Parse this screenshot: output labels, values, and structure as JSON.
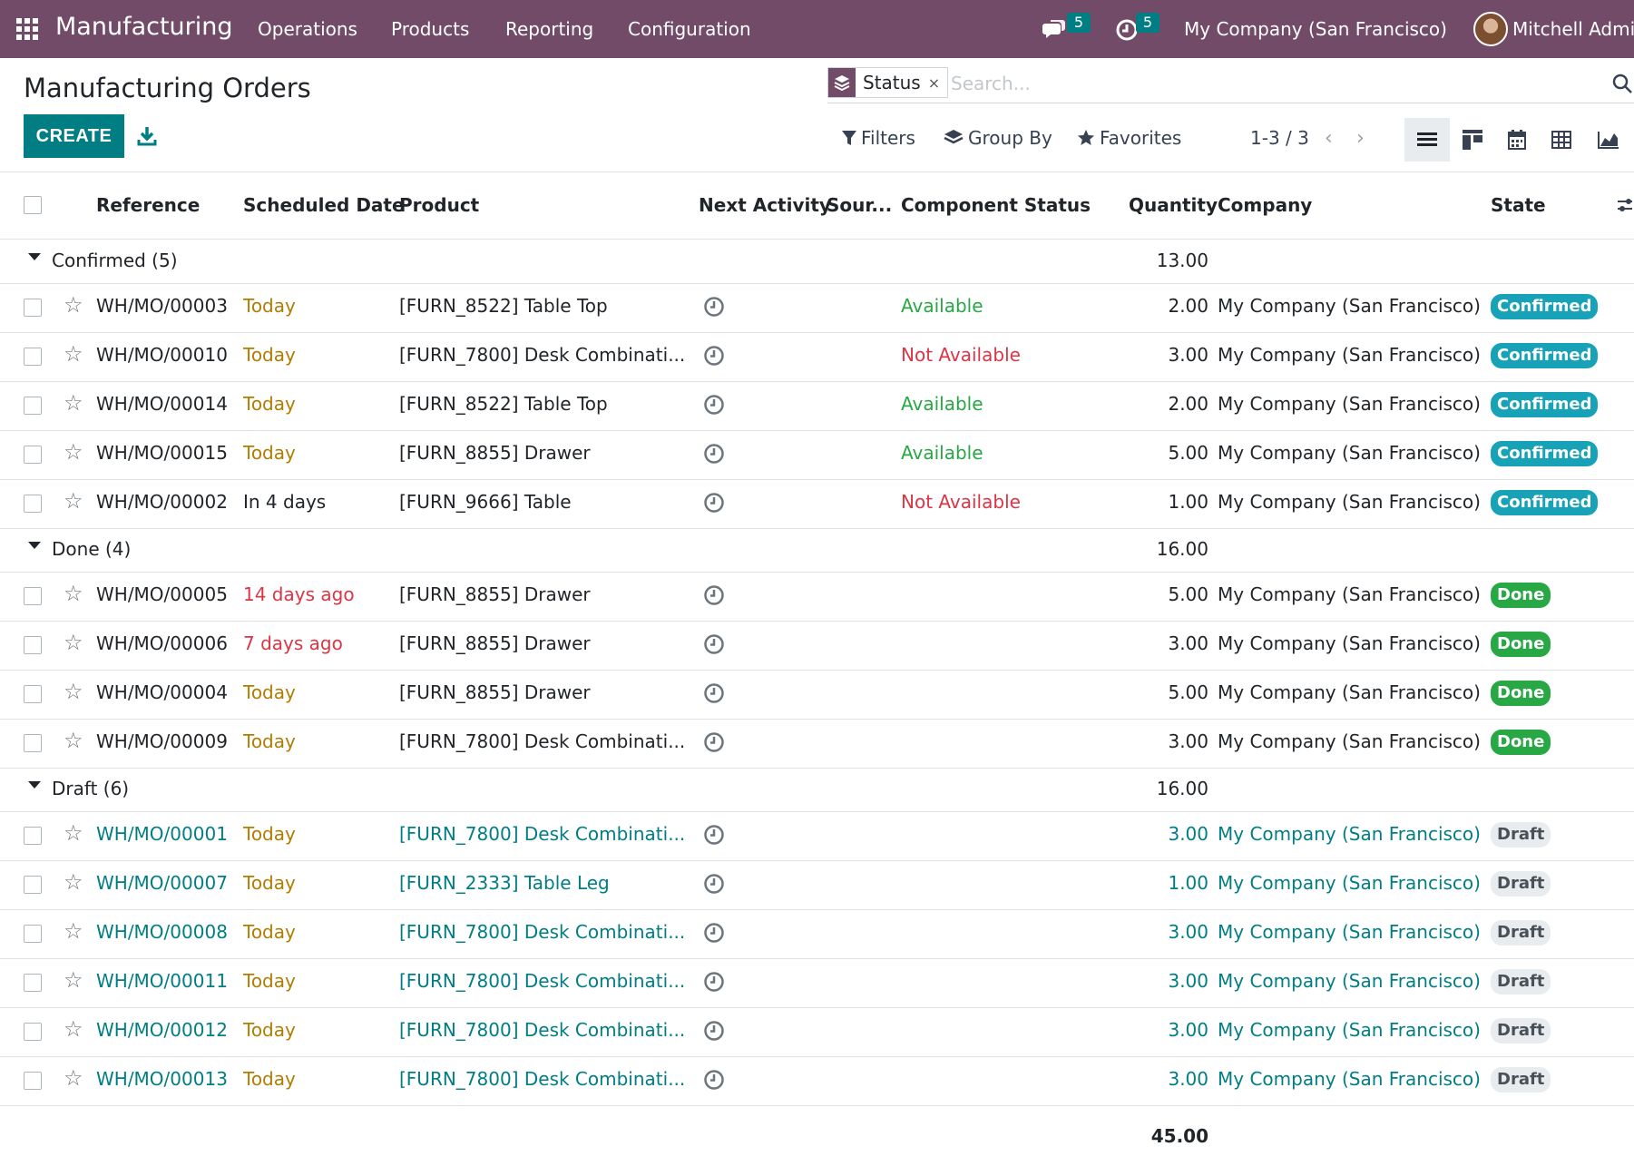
{
  "navbar": {
    "app_name": "Manufacturing",
    "menu": [
      "Operations",
      "Products",
      "Reporting",
      "Configuration"
    ],
    "messages_count": "5",
    "activities_count": "5",
    "company": "My Company (San Francisco)",
    "user": "Mitchell Admin",
    "bg_color": "#714B67"
  },
  "control_panel": {
    "title": "Manufacturing Orders",
    "create_label": "CREATE",
    "facet_label": "Status",
    "facet_remove": "×",
    "search_placeholder": "Search...",
    "filters_label": "Filters",
    "groupby_label": "Group By",
    "favorites_label": "Favorites",
    "pager": "1-3 / 3",
    "pager_prev": "‹",
    "pager_next": "›"
  },
  "columns": {
    "reference": "Reference",
    "scheduled_date": "Scheduled Date",
    "product": "Product",
    "next_activity": "Next Activity",
    "source": "Sour...",
    "component_status": "Component Status",
    "quantity": "Quantity",
    "company": "Company",
    "state": "State"
  },
  "groups": [
    {
      "label": "Confirmed (5)",
      "total": "13.00",
      "rows": [
        {
          "ref": "WH/MO/00003",
          "date": "Today",
          "date_kind": "today",
          "product": "[FURN_8522] Table Top",
          "component": "Available",
          "component_kind": "ok",
          "qty": "2.00",
          "company": "My Company (San Francisco)",
          "state": "Confirmed",
          "state_kind": "confirmed"
        },
        {
          "ref": "WH/MO/00010",
          "date": "Today",
          "date_kind": "today",
          "product": "[FURN_7800] Desk Combinati...",
          "component": "Not Available",
          "component_kind": "ko",
          "qty": "3.00",
          "company": "My Company (San Francisco)",
          "state": "Confirmed",
          "state_kind": "confirmed"
        },
        {
          "ref": "WH/MO/00014",
          "date": "Today",
          "date_kind": "today",
          "product": "[FURN_8522] Table Top",
          "component": "Available",
          "component_kind": "ok",
          "qty": "2.00",
          "company": "My Company (San Francisco)",
          "state": "Confirmed",
          "state_kind": "confirmed"
        },
        {
          "ref": "WH/MO/00015",
          "date": "Today",
          "date_kind": "today",
          "product": "[FURN_8855] Drawer",
          "component": "Available",
          "component_kind": "ok",
          "qty": "5.00",
          "company": "My Company (San Francisco)",
          "state": "Confirmed",
          "state_kind": "confirmed"
        },
        {
          "ref": "WH/MO/00002",
          "date": "In 4 days",
          "date_kind": "future",
          "product": "[FURN_9666] Table",
          "component": "Not Available",
          "component_kind": "ko",
          "qty": "1.00",
          "company": "My Company (San Francisco)",
          "state": "Confirmed",
          "state_kind": "confirmed"
        }
      ]
    },
    {
      "label": "Done (4)",
      "total": "16.00",
      "rows": [
        {
          "ref": "WH/MO/00005",
          "date": "14 days ago",
          "date_kind": "late",
          "product": "[FURN_8855] Drawer",
          "component": "",
          "component_kind": "",
          "qty": "5.00",
          "company": "My Company (San Francisco)",
          "state": "Done",
          "state_kind": "done"
        },
        {
          "ref": "WH/MO/00006",
          "date": "7 days ago",
          "date_kind": "late",
          "product": "[FURN_8855] Drawer",
          "component": "",
          "component_kind": "",
          "qty": "3.00",
          "company": "My Company (San Francisco)",
          "state": "Done",
          "state_kind": "done"
        },
        {
          "ref": "WH/MO/00004",
          "date": "Today",
          "date_kind": "today",
          "product": "[FURN_8855] Drawer",
          "component": "",
          "component_kind": "",
          "qty": "5.00",
          "company": "My Company (San Francisco)",
          "state": "Done",
          "state_kind": "done"
        },
        {
          "ref": "WH/MO/00009",
          "date": "Today",
          "date_kind": "today",
          "product": "[FURN_7800] Desk Combinati...",
          "component": "",
          "component_kind": "",
          "qty": "3.00",
          "company": "My Company (San Francisco)",
          "state": "Done",
          "state_kind": "done"
        }
      ]
    },
    {
      "label": "Draft (6)",
      "total": "16.00",
      "rows": [
        {
          "ref": "WH/MO/00001",
          "date": "Today",
          "date_kind": "today",
          "product": "[FURN_7800] Desk Combinati...",
          "component": "",
          "component_kind": "",
          "qty": "3.00",
          "company": "My Company (San Francisco)",
          "state": "Draft",
          "state_kind": "draft"
        },
        {
          "ref": "WH/MO/00007",
          "date": "Today",
          "date_kind": "today",
          "product": "[FURN_2333] Table Leg",
          "component": "",
          "component_kind": "",
          "qty": "1.00",
          "company": "My Company (San Francisco)",
          "state": "Draft",
          "state_kind": "draft"
        },
        {
          "ref": "WH/MO/00008",
          "date": "Today",
          "date_kind": "today",
          "product": "[FURN_7800] Desk Combinati...",
          "component": "",
          "component_kind": "",
          "qty": "3.00",
          "company": "My Company (San Francisco)",
          "state": "Draft",
          "state_kind": "draft"
        },
        {
          "ref": "WH/MO/00011",
          "date": "Today",
          "date_kind": "today",
          "product": "[FURN_7800] Desk Combinati...",
          "component": "",
          "component_kind": "",
          "qty": "3.00",
          "company": "My Company (San Francisco)",
          "state": "Draft",
          "state_kind": "draft"
        },
        {
          "ref": "WH/MO/00012",
          "date": "Today",
          "date_kind": "today",
          "product": "[FURN_7800] Desk Combinati...",
          "component": "",
          "component_kind": "",
          "qty": "3.00",
          "company": "My Company (San Francisco)",
          "state": "Draft",
          "state_kind": "draft"
        },
        {
          "ref": "WH/MO/00013",
          "date": "Today",
          "date_kind": "today",
          "product": "[FURN_7800] Desk Combinati...",
          "component": "",
          "component_kind": "",
          "qty": "3.00",
          "company": "My Company (San Francisco)",
          "state": "Draft",
          "state_kind": "draft"
        }
      ]
    }
  ],
  "grand_total": "45.00",
  "colors": {
    "primary": "#017e84",
    "today": "#b07d00",
    "late": "#dc3545",
    "available": "#28a745",
    "not_available": "#dc3545",
    "draft_text": "#017e84"
  }
}
